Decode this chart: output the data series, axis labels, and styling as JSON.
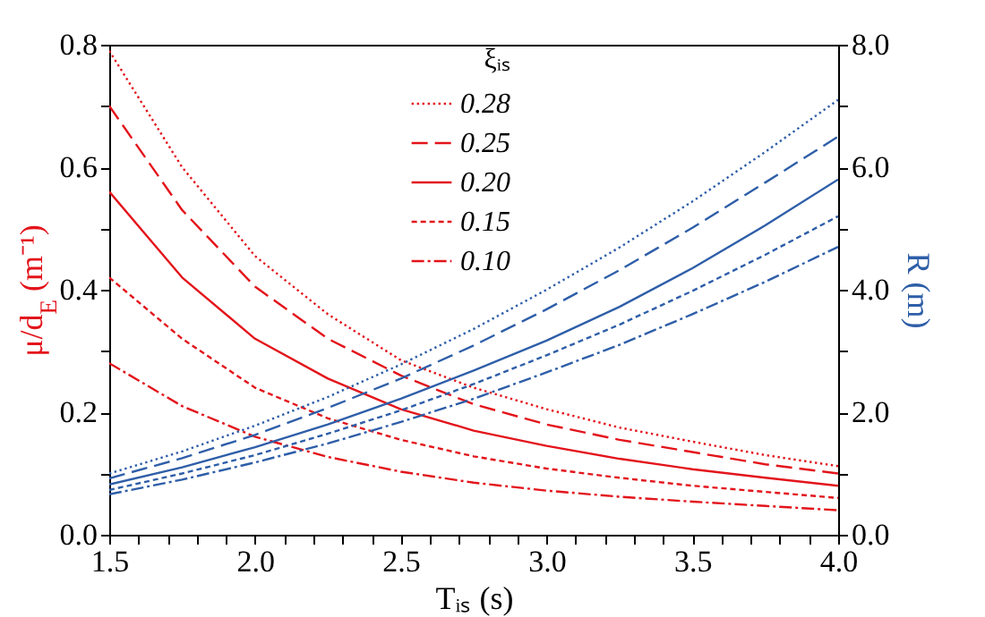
{
  "chart_data": {
    "type": "line",
    "xlabel": "Tᵢₛ (s)",
    "ylabel": "μ/d$_{E}$ (m⁻¹)",
    "y2label": "R (m)",
    "legend_title": "ξᵢₛ",
    "x": [
      1.5,
      1.75,
      2.0,
      2.25,
      2.5,
      2.75,
      3.0,
      3.25,
      3.5,
      3.75,
      4.0
    ],
    "series": [
      {
        "name": "0.28",
        "color": "#e3141b",
        "line_style": "dotted",
        "values": [
          0.79,
          0.6,
          0.455,
          0.36,
          0.285,
          0.24,
          0.205,
          0.175,
          0.152,
          0.13,
          0.112
        ]
      },
      {
        "name": "0.25",
        "color": "#e3141b",
        "line_style": "dashed",
        "values": [
          0.7,
          0.53,
          0.405,
          0.32,
          0.26,
          0.213,
          0.18,
          0.155,
          0.135,
          0.115,
          0.1
        ]
      },
      {
        "name": "0.20",
        "color": "#e3141b",
        "line_style": "solid",
        "values": [
          0.56,
          0.42,
          0.32,
          0.255,
          0.205,
          0.17,
          0.145,
          0.124,
          0.107,
          0.093,
          0.08
        ]
      },
      {
        "name": "0.15",
        "color": "#e3141b",
        "line_style": "short-dashed",
        "values": [
          0.42,
          0.32,
          0.24,
          0.19,
          0.155,
          0.128,
          0.108,
          0.093,
          0.08,
          0.07,
          0.06
        ]
      },
      {
        "name": "0.10",
        "color": "#e3141b",
        "line_style": "dashdot",
        "values": [
          0.28,
          0.21,
          0.16,
          0.127,
          0.103,
          0.085,
          0.072,
          0.062,
          0.054,
          0.047,
          0.04
        ]
      },
      {
        "axis": "y2",
        "color": "#2e5ea8",
        "line_style": "dotted",
        "values": [
          1.0,
          1.36,
          1.78,
          2.25,
          2.78,
          3.36,
          4.0,
          4.69,
          5.44,
          6.25,
          7.1
        ]
      },
      {
        "axis": "y2",
        "color": "#2e5ea8",
        "line_style": "dashed",
        "values": [
          0.92,
          1.25,
          1.63,
          2.07,
          2.55,
          3.09,
          3.68,
          4.32,
          5.01,
          5.75,
          6.5
        ]
      },
      {
        "axis": "y2",
        "color": "#2e5ea8",
        "line_style": "solid",
        "values": [
          0.82,
          1.1,
          1.43,
          1.8,
          2.22,
          2.68,
          3.17,
          3.72,
          4.35,
          5.05,
          5.8
        ]
      },
      {
        "axis": "y2",
        "color": "#2e5ea8",
        "line_style": "short-dashed",
        "values": [
          0.73,
          1.0,
          1.3,
          1.65,
          2.03,
          2.46,
          2.93,
          3.43,
          3.98,
          4.57,
          5.2
        ]
      },
      {
        "axis": "y2",
        "color": "#2e5ea8",
        "line_style": "dashdot",
        "values": [
          0.66,
          0.9,
          1.18,
          1.49,
          1.84,
          2.22,
          2.65,
          3.1,
          3.6,
          4.13,
          4.7
        ]
      }
    ],
    "xlim": [
      1.5,
      4.0
    ],
    "xticks": [
      1.5,
      {
        "value": 1.6,
        "label": null
      },
      {
        "value": 1.7,
        "label": null
      },
      {
        "value": 1.8,
        "label": null
      },
      {
        "value": 1.9,
        "label": null
      },
      {
        "value": 2.0,
        "label": "2.0"
      },
      {
        "value": 2.1,
        "label": null
      },
      {
        "value": 2.2,
        "label": null
      },
      {
        "value": 2.3,
        "label": null
      },
      {
        "value": 2.4,
        "label": null
      },
      2.5,
      {
        "value": 2.6,
        "label": null
      },
      {
        "value": 2.7,
        "label": null
      },
      {
        "value": 2.8,
        "label": null
      },
      {
        "value": 2.9,
        "label": null
      },
      {
        "value": 3.0,
        "label": "3.0"
      },
      {
        "value": 3.1,
        "label": null
      },
      {
        "value": 3.2,
        "label": null
      },
      {
        "value": 3.3,
        "label": null
      },
      {
        "value": 3.4,
        "label": null
      },
      3.5,
      {
        "value": 3.6,
        "label": null
      },
      {
        "value": 3.7,
        "label": null
      },
      {
        "value": 3.8,
        "label": null
      },
      {
        "value": 3.9,
        "label": null
      },
      {
        "value": 4.0,
        "label": "4.0"
      }
    ],
    "ylim": [
      0,
      0.8
    ],
    "yticks": [
      {
        "value": 0,
        "label": "0.0"
      },
      {
        "value": 0.1,
        "label": null
      },
      0.2,
      {
        "value": 0.3,
        "label": null
      },
      0.4,
      {
        "value": 0.5,
        "label": null
      },
      0.6,
      {
        "value": 0.7,
        "label": null
      },
      0.8
    ],
    "y2lim": [
      0,
      8
    ],
    "y2ticks": [
      {
        "value": 0,
        "label": "0.0"
      },
      {
        "value": 1,
        "label": null
      },
      {
        "value": 2,
        "label": "2.0"
      },
      {
        "value": 3,
        "label": null
      },
      {
        "value": 4,
        "label": "4.0"
      },
      {
        "value": 5,
        "label": null
      },
      {
        "value": 6,
        "label": "6.0"
      },
      {
        "value": 7,
        "label": null
      },
      {
        "value": 8,
        "label": "8.0"
      }
    ],
    "legend": "top",
    "grid": false
  }
}
